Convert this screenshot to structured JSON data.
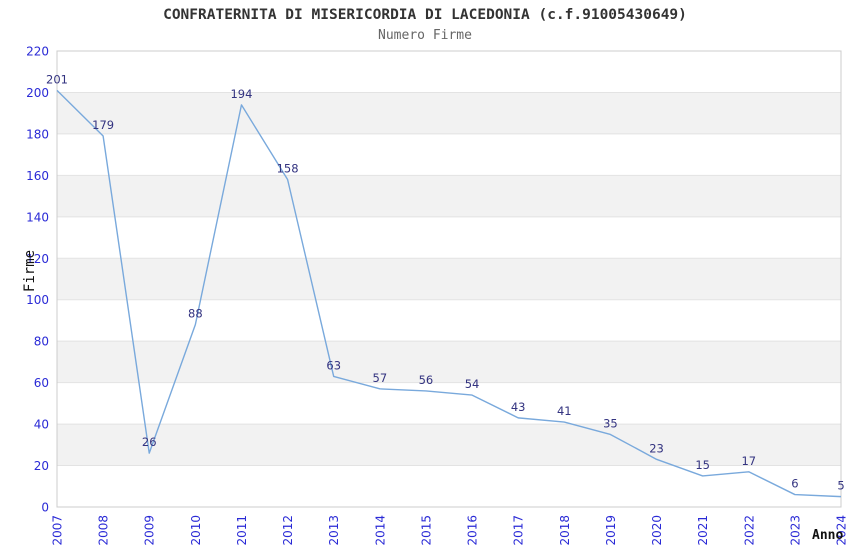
{
  "header": {
    "title": "CONFRATERNITA DI MISERICORDIA DI LACEDONIA (c.f.91005430649)",
    "subtitle": "Numero Firme"
  },
  "axes": {
    "y_title": "Firme",
    "x_title": "Anno"
  },
  "chart_data": {
    "type": "line",
    "title": "CONFRATERNITA DI MISERICORDIA DI LACEDONIA (c.f.91005430649)",
    "subtitle": "Numero Firme",
    "xlabel": "Anno",
    "ylabel": "Firme",
    "categories": [
      "2007",
      "2008",
      "2009",
      "2010",
      "2011",
      "2012",
      "2013",
      "2014",
      "2015",
      "2016",
      "2017",
      "2018",
      "2019",
      "2020",
      "2021",
      "2022",
      "2023",
      "2024"
    ],
    "series": [
      {
        "name": "Numero Firme",
        "values": [
          201,
          179,
          26,
          88,
          194,
          158,
          63,
          57,
          56,
          54,
          43,
          41,
          35,
          23,
          15,
          17,
          6,
          5
        ]
      }
    ],
    "ylim": [
      0,
      220
    ],
    "y_tick_step": 20,
    "y_ticks": [
      0,
      20,
      40,
      60,
      80,
      100,
      120,
      140,
      160,
      180,
      200,
      220
    ],
    "grid": "alternating-horizontal-bands",
    "legend": "none",
    "data_labels": true,
    "colors": {
      "line": "#79a9dc",
      "data_label": "#333380",
      "tick_label": "#2a2ad6",
      "band": "#f2f2f2",
      "gridline": "#e3e3e3",
      "plot_border": "#cccccc",
      "title": "#333333",
      "subtitle": "#666666",
      "axis_title": "#111111",
      "background": "#ffffff"
    }
  }
}
